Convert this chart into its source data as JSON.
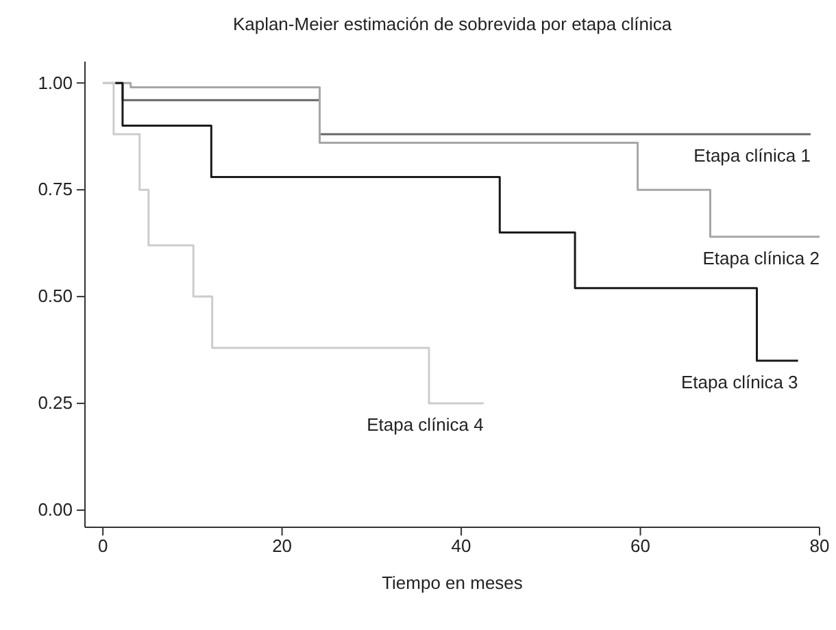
{
  "chart_data": {
    "type": "step",
    "title": "Kaplan-Meier estimación de sobrevida por etapa clínica",
    "xlabel": "Tiempo en meses",
    "xlim": [
      -2,
      80
    ],
    "xticks": [
      0,
      20,
      40,
      60,
      80
    ],
    "ylim": [
      -0.04,
      1.05
    ],
    "yticks": [
      {
        "value": 0,
        "label": "0.00"
      },
      {
        "value": 0.25,
        "label": "0.25"
      },
      {
        "value": 0.5,
        "label": "0.50"
      },
      {
        "value": 0.75,
        "label": "0.75"
      },
      {
        "value": 1,
        "label": "1.00"
      }
    ],
    "grid": false,
    "series": [
      {
        "name": "Etapa clínica 1",
        "color": "#666666",
        "x": [
          1.4,
          2.2,
          24.2,
          79
        ],
        "values": [
          1,
          0.96,
          0.88,
          0.88
        ]
      },
      {
        "name": "Etapa clínica 2",
        "color": "#a6a6a6",
        "x": [
          0,
          3.1,
          24.2,
          59.7,
          67.8,
          80
        ],
        "values": [
          1,
          0.99,
          0.86,
          0.75,
          0.64,
          0.64
        ]
      },
      {
        "name": "Etapa clínica 3",
        "color": "#1a1a1a",
        "x": [
          1.4,
          2.2,
          12.1,
          44.3,
          52.7,
          73,
          77.6
        ],
        "values": [
          1,
          0.9,
          0.78,
          0.65,
          0.52,
          0.35,
          0.35
        ]
      },
      {
        "name": "Etapa clínica 4",
        "color": "#cccccc",
        "x": [
          0,
          1.2,
          4.1,
          5.1,
          10.1,
          12.2,
          36.4,
          42.5
        ],
        "values": [
          1,
          0.88,
          0.75,
          0.62,
          0.5,
          0.38,
          0.25,
          0.25
        ]
      }
    ]
  }
}
